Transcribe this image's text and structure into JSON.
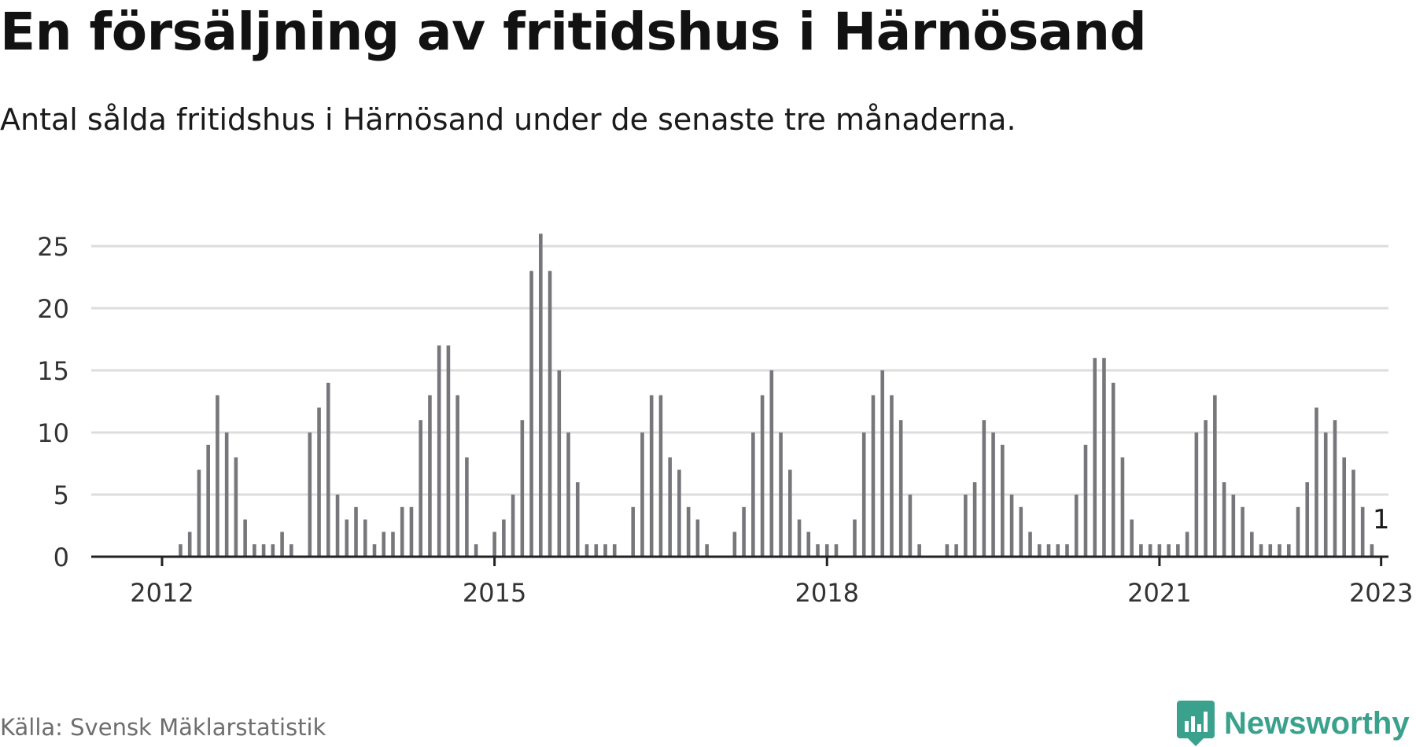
{
  "title": "En försäljning av fritidshus i Härnösand",
  "subtitle": "Antal sålda fritidshus i Härnösand under de senaste tre månaderna.",
  "source": "Källa: Svensk Mäklarstatistik",
  "brand": "Newsworthy",
  "colors": {
    "bar": "#77767b",
    "highlight": "#2aa891",
    "grid": "#dddddd",
    "axis": "#222222",
    "brand": "#3aa18c"
  },
  "chart_data": {
    "type": "bar",
    "x_start": "2011-06",
    "x_step": "month",
    "ylim": [
      0,
      26
    ],
    "yticks": [
      0,
      5,
      10,
      15,
      20,
      25
    ],
    "xticks": [
      {
        "label": "2012",
        "date": "2012-01"
      },
      {
        "label": "2015",
        "date": "2015-01"
      },
      {
        "label": "2018",
        "date": "2018-01"
      },
      {
        "label": "2021",
        "date": "2021-01"
      },
      {
        "label": "2023",
        "date": "2023-01"
      }
    ],
    "values": [
      0,
      0,
      0,
      0,
      0,
      0,
      0,
      0,
      0,
      1,
      2,
      7,
      9,
      13,
      10,
      8,
      3,
      1,
      1,
      1,
      2,
      1,
      0,
      10,
      12,
      14,
      5,
      3,
      4,
      3,
      1,
      2,
      2,
      4,
      4,
      11,
      13,
      17,
      17,
      13,
      8,
      1,
      0,
      2,
      3,
      5,
      11,
      23,
      26,
      23,
      15,
      10,
      6,
      1,
      1,
      1,
      1,
      0,
      4,
      10,
      13,
      13,
      8,
      7,
      4,
      3,
      1,
      0,
      0,
      2,
      4,
      10,
      13,
      15,
      10,
      7,
      3,
      2,
      1,
      1,
      1,
      0,
      3,
      10,
      13,
      15,
      13,
      11,
      5,
      1,
      0,
      0,
      1,
      1,
      5,
      6,
      11,
      10,
      9,
      5,
      4,
      2,
      1,
      1,
      1,
      1,
      5,
      9,
      16,
      16,
      14,
      8,
      3,
      1,
      1,
      1,
      1,
      1,
      2,
      10,
      11,
      13,
      6,
      5,
      4,
      2,
      1,
      1,
      1,
      1,
      4,
      6,
      12,
      10,
      11,
      8,
      7,
      4,
      1
    ],
    "highlight": {
      "date": "2023-01",
      "value": 1,
      "label": "1"
    }
  }
}
